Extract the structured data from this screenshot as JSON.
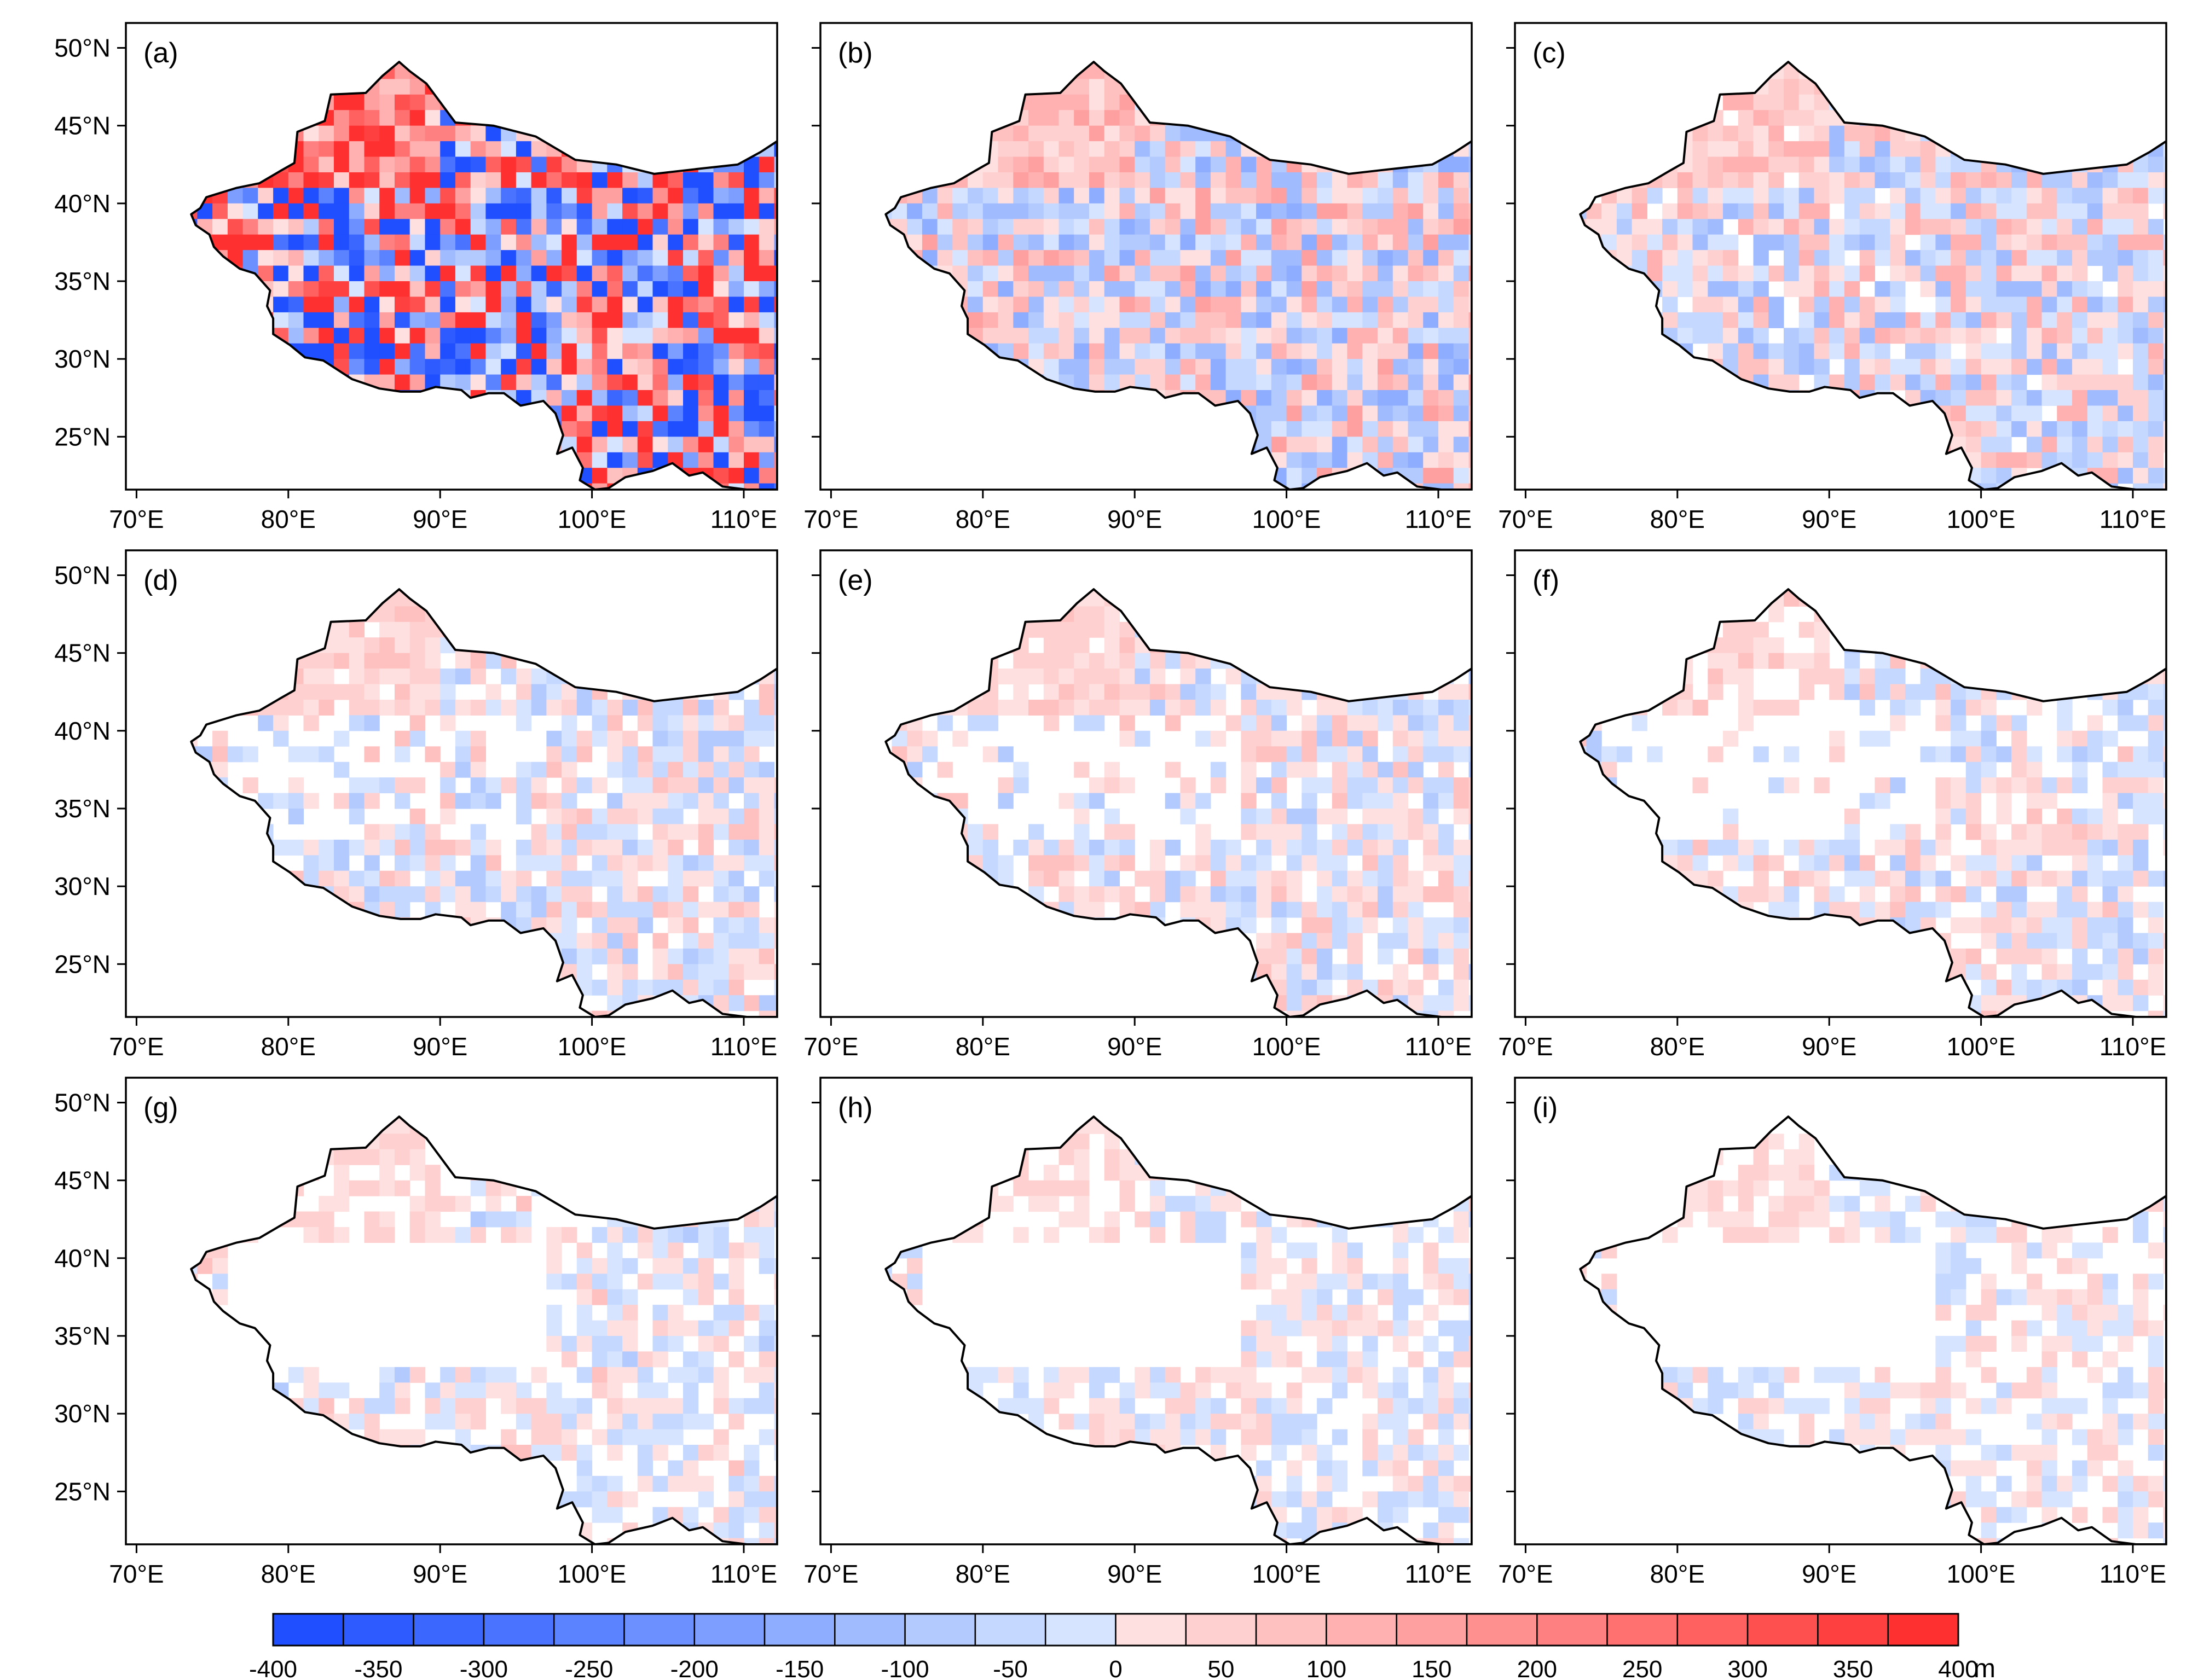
{
  "figure": {
    "panel_labels": [
      "(a)",
      "(b)",
      "(c)",
      "(d)",
      "(e)",
      "(f)",
      "(g)",
      "(h)",
      "(i)"
    ],
    "x_tick_labels": [
      "70°E",
      "80°E",
      "90°E",
      "100°E",
      "110°E"
    ],
    "y_tick_labels": [
      "50°N",
      "45°N",
      "40°N",
      "35°N",
      "30°N",
      "25°N"
    ],
    "colorbar": {
      "tick_labels": [
        "-400",
        "-350",
        "-300",
        "-250",
        "-200",
        "-150",
        "-100",
        "-50",
        "0",
        "50",
        "100",
        "150",
        "200",
        "250",
        "300",
        "350",
        "400"
      ],
      "unit": "m",
      "colors": [
        "#1f4fff",
        "#2d5bff",
        "#3b67ff",
        "#4a74ff",
        "#5b82ff",
        "#6c90ff",
        "#7e9eff",
        "#8fadff",
        "#a1bbff",
        "#b3caff",
        "#c5d8ff",
        "#d7e4ff",
        "#ffe0e0",
        "#ffd0d0",
        "#ffc0c0",
        "#ffb0b0",
        "#ffa0a0",
        "#ff9090",
        "#ff8080",
        "#ff7070",
        "#ff6060",
        "#ff5050",
        "#ff4040",
        "#ff3030"
      ]
    }
  },
  "chart_data": [
    {
      "type": "heatmap",
      "panel": "(a)",
      "x_range_deg_e": [
        70,
        112
      ],
      "y_range_deg_n": [
        21.5,
        51.5
      ],
      "values_unit": "m",
      "value_range": [
        -400,
        400
      ]
    },
    {
      "type": "heatmap",
      "panel": "(b)",
      "x_range_deg_e": [
        70,
        112
      ],
      "y_range_deg_n": [
        21.5,
        51.5
      ],
      "values_unit": "m",
      "value_range": [
        -400,
        400
      ]
    },
    {
      "type": "heatmap",
      "panel": "(c)",
      "x_range_deg_e": [
        70,
        112
      ],
      "y_range_deg_n": [
        21.5,
        51.5
      ],
      "values_unit": "m",
      "value_range": [
        -400,
        400
      ]
    },
    {
      "type": "heatmap",
      "panel": "(d)",
      "x_range_deg_e": [
        70,
        112
      ],
      "y_range_deg_n": [
        21.5,
        51.5
      ],
      "values_unit": "m",
      "value_range": [
        -400,
        400
      ]
    },
    {
      "type": "heatmap",
      "panel": "(e)",
      "x_range_deg_e": [
        70,
        112
      ],
      "y_range_deg_n": [
        21.5,
        51.5
      ],
      "values_unit": "m",
      "value_range": [
        -400,
        400
      ]
    },
    {
      "type": "heatmap",
      "panel": "(f)",
      "x_range_deg_e": [
        70,
        112
      ],
      "y_range_deg_n": [
        21.5,
        51.5
      ],
      "values_unit": "m",
      "value_range": [
        -400,
        400
      ]
    },
    {
      "type": "heatmap",
      "panel": "(g)",
      "x_range_deg_e": [
        70,
        112
      ],
      "y_range_deg_n": [
        21.5,
        51.5
      ],
      "values_unit": "m",
      "value_range": [
        -400,
        400
      ]
    },
    {
      "type": "heatmap",
      "panel": "(h)",
      "x_range_deg_e": [
        70,
        112
      ],
      "y_range_deg_n": [
        21.5,
        51.5
      ],
      "values_unit": "m",
      "value_range": [
        -400,
        400
      ]
    },
    {
      "type": "heatmap",
      "panel": "(i)",
      "x_range_deg_e": [
        70,
        112
      ],
      "y_range_deg_n": [
        21.5,
        51.5
      ],
      "values_unit": "m",
      "value_range": [
        -400,
        400
      ]
    }
  ]
}
